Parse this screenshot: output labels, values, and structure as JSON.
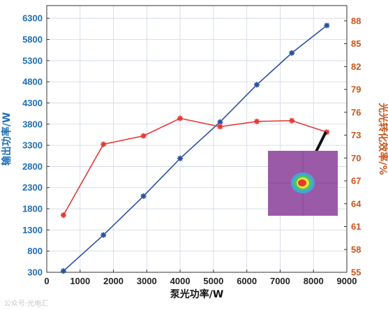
{
  "chart_data": {
    "type": "line",
    "xlabel": "泵光功率/W",
    "ylabel_left": "输出功率/W",
    "ylabel_right": "光光转化效率/%",
    "xlim": [
      0,
      9000
    ],
    "ylim_left": [
      300,
      6600
    ],
    "ylim_right": [
      55,
      90
    ],
    "x_ticks": [
      "0",
      "1000",
      "2000",
      "3000",
      "4000",
      "5000",
      "6000",
      "7000",
      "8000",
      "9000"
    ],
    "y_left_ticks": [
      "300",
      "800",
      "1300",
      "1800",
      "2300",
      "2800",
      "3300",
      "3800",
      "4300",
      "4800",
      "5300",
      "5800",
      "6300"
    ],
    "y_right_ticks": [
      "55",
      "58",
      "61",
      "64",
      "67",
      "70",
      "73",
      "76",
      "79",
      "82",
      "85",
      "88"
    ],
    "grid": true,
    "series": [
      {
        "axis": "left",
        "color": "#2b4fa0",
        "marker_color": "#2b4fa0",
        "x": [
          500,
          1700,
          2900,
          4000,
          5200,
          6300,
          7350,
          8400
        ],
        "y": [
          330,
          1180,
          2100,
          2990,
          3850,
          4730,
          5480,
          6130
        ]
      },
      {
        "axis": "right",
        "color": "#e53935",
        "marker_color": "#e53935",
        "x": [
          500,
          1700,
          2900,
          4000,
          5200,
          6300,
          7350,
          8400
        ],
        "y": [
          62.5,
          71.8,
          72.9,
          75.2,
          74.1,
          74.8,
          74.9,
          73.4
        ]
      }
    ],
    "inset": {
      "description_icon": "beam-profile-image",
      "background": "#9a5aa8"
    }
  },
  "watermark": "公众号·光电汇"
}
